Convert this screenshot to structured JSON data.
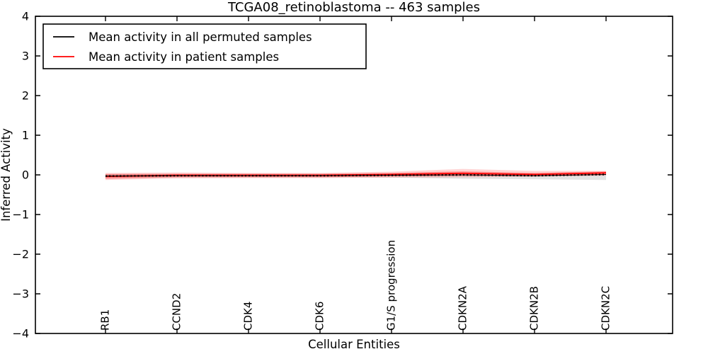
{
  "chart_data": {
    "type": "line",
    "title": "TCGA08_retinoblastoma -- 463 samples",
    "xlabel": "Cellular Entities",
    "ylabel": "Inferred Activity",
    "ylim": [
      -4,
      4
    ],
    "grid": false,
    "yticks": [
      4,
      3,
      2,
      1,
      0,
      -1,
      -2,
      -3,
      -4
    ],
    "ytick_labels": [
      "4",
      "3",
      "2",
      "1",
      "0",
      "−1",
      "−2",
      "−3",
      "−4"
    ],
    "categories": [
      "RB1",
      "CCND2",
      "CDK4",
      "CDK6",
      "G1/S progression",
      "CDKN2A",
      "CDKN2B",
      "CDKN2C"
    ],
    "points_per_segment": 20,
    "legend": {
      "position": "upper left",
      "entries": [
        {
          "label": "Mean activity in all permuted samples",
          "color": "#000000"
        },
        {
          "label": "Mean activity in patient samples",
          "color": "#ff0000"
        }
      ]
    },
    "series": [
      {
        "name": "Mean activity in all permuted samples",
        "color": "#000000",
        "style": "dotted-markers",
        "values": [
          -0.03,
          -0.02,
          -0.02,
          -0.02,
          -0.01,
          0.0,
          -0.02,
          0.01
        ]
      },
      {
        "name": "Mean activity in patient samples",
        "color": "#ff0000",
        "style": "solid",
        "values": [
          -0.04,
          -0.01,
          -0.01,
          -0.01,
          0.01,
          0.04,
          0.01,
          0.05
        ]
      }
    ],
    "bands": [
      {
        "name": "permuted-samples-spread",
        "color": "#000000",
        "opacity": 0.11,
        "upper": [
          0.02,
          0.02,
          0.02,
          0.02,
          0.03,
          0.04,
          0.03,
          0.04
        ],
        "lower": [
          -0.07,
          -0.06,
          -0.06,
          -0.06,
          -0.07,
          -0.1,
          -0.11,
          -0.13
        ]
      },
      {
        "name": "patient-samples-spread-outer",
        "color": "#ff0000",
        "opacity": 0.17,
        "upper": [
          0.05,
          0.06,
          0.05,
          0.05,
          0.08,
          0.15,
          0.1,
          0.1
        ],
        "lower": [
          -0.13,
          -0.09,
          -0.08,
          -0.08,
          -0.07,
          -0.06,
          -0.05,
          -0.02
        ]
      },
      {
        "name": "patient-samples-spread-inner",
        "color": "#ff0000",
        "opacity": 0.3,
        "upper": [
          0.02,
          0.03,
          0.03,
          0.03,
          0.05,
          0.09,
          0.05,
          0.09
        ],
        "lower": [
          -0.1,
          -0.06,
          -0.06,
          -0.06,
          -0.04,
          -0.02,
          -0.03,
          0.0
        ]
      }
    ]
  }
}
